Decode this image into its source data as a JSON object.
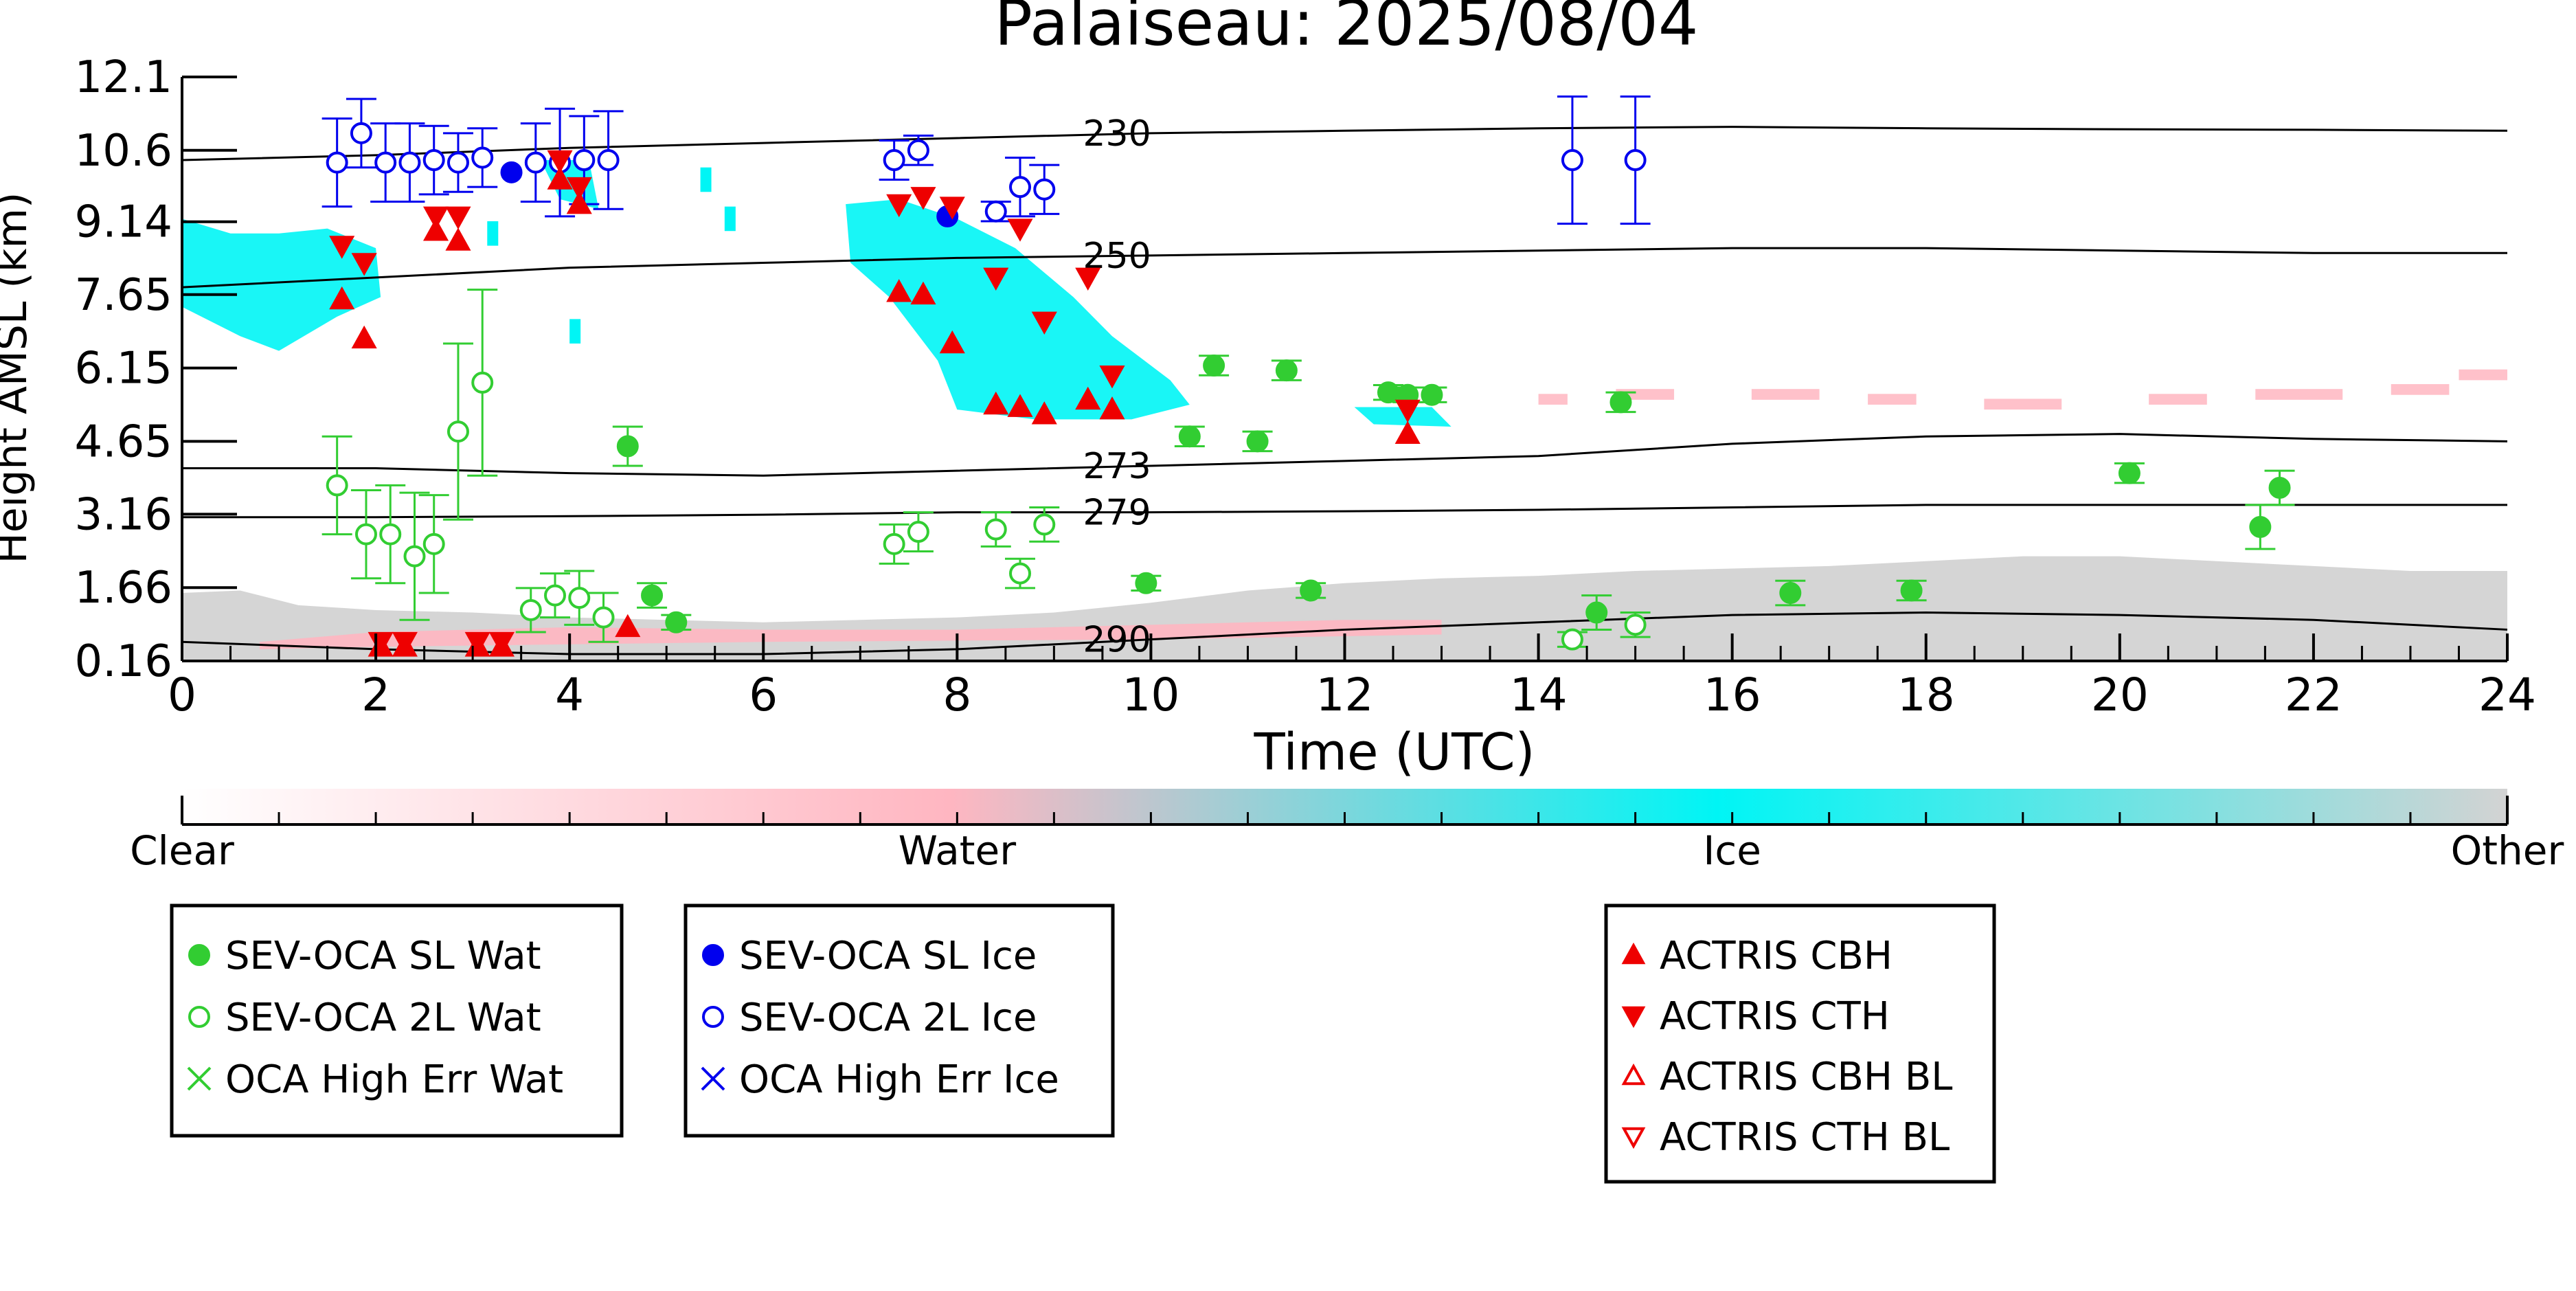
{
  "chart_data": {
    "type": "scatter",
    "title": "Palaiseau: 2025/08/04",
    "xlabel": "Time (UTC)",
    "ylabel": "Height AMSL (km)",
    "xlim": [
      0,
      24
    ],
    "ylim": [
      0.16,
      12.1
    ],
    "x_ticks": [
      0,
      2,
      4,
      6,
      8,
      10,
      12,
      14,
      16,
      18,
      20,
      22,
      24
    ],
    "y_ticks": [
      "0.16",
      "1.66",
      "3.16",
      "4.65",
      "6.15",
      "7.65",
      "9.14",
      "10.6",
      "12.1"
    ],
    "colorbar": {
      "labels": [
        "Clear",
        "Water",
        "Ice",
        "Other"
      ],
      "colors": [
        "#ffffff",
        "#ffb6c1",
        "#00f5f5",
        "#d3d3d3"
      ]
    },
    "contours": [
      {
        "label": "230",
        "x": [
          0,
          2,
          4,
          6,
          8,
          10,
          12,
          14,
          16,
          18,
          20,
          22,
          24
        ],
        "y": [
          10.4,
          10.5,
          10.65,
          10.75,
          10.85,
          10.95,
          11.0,
          11.05,
          11.08,
          11.05,
          11.03,
          11.02,
          11.0
        ]
      },
      {
        "label": "250",
        "x": [
          0,
          2,
          4,
          6,
          8,
          10,
          12,
          14,
          16,
          18,
          20,
          22,
          24
        ],
        "y": [
          7.8,
          8.0,
          8.2,
          8.3,
          8.4,
          8.45,
          8.5,
          8.55,
          8.6,
          8.6,
          8.55,
          8.5,
          8.5
        ]
      },
      {
        "label": "273",
        "x": [
          0,
          2,
          4,
          6,
          8,
          10,
          12,
          14,
          16,
          18,
          20,
          22,
          24
        ],
        "y": [
          4.1,
          4.1,
          4.0,
          3.95,
          4.05,
          4.15,
          4.25,
          4.35,
          4.6,
          4.75,
          4.8,
          4.7,
          4.65
        ]
      },
      {
        "label": "279",
        "x": [
          0,
          2,
          4,
          6,
          8,
          10,
          12,
          14,
          16,
          18,
          20,
          22,
          24
        ],
        "y": [
          3.1,
          3.1,
          3.12,
          3.15,
          3.2,
          3.2,
          3.22,
          3.25,
          3.3,
          3.35,
          3.35,
          3.35,
          3.35
        ]
      },
      {
        "label": "290",
        "x": [
          0,
          2,
          4,
          6,
          8,
          10,
          12,
          14,
          16,
          18,
          20,
          22,
          24
        ],
        "y": [
          0.55,
          0.4,
          0.3,
          0.3,
          0.4,
          0.6,
          0.8,
          0.95,
          1.1,
          1.15,
          1.1,
          1.0,
          0.8
        ]
      }
    ],
    "series": [
      {
        "name": "SEV-OCA SL Wat",
        "color": "#32cd32",
        "marker": "filled-circle",
        "points": [
          {
            "x": 4.6,
            "y": 4.55,
            "err": 0.4
          },
          {
            "x": 4.85,
            "y": 1.5,
            "err": 0.25
          },
          {
            "x": 5.1,
            "y": 0.95,
            "err": 0.15
          },
          {
            "x": 9.95,
            "y": 1.75,
            "err": 0.15
          },
          {
            "x": 10.4,
            "y": 4.75,
            "err": 0.2
          },
          {
            "x": 10.65,
            "y": 6.2,
            "err": 0.2
          },
          {
            "x": 11.1,
            "y": 4.65,
            "err": 0.2
          },
          {
            "x": 11.4,
            "y": 6.1,
            "err": 0.2
          },
          {
            "x": 11.65,
            "y": 1.6,
            "err": 0.15
          },
          {
            "x": 12.45,
            "y": 5.65,
            "err": 0.15
          },
          {
            "x": 12.65,
            "y": 5.6,
            "err": 0.15
          },
          {
            "x": 12.9,
            "y": 5.6,
            "err": 0.15
          },
          {
            "x": 14.6,
            "y": 1.15,
            "err": 0.35
          },
          {
            "x": 14.85,
            "y": 5.45,
            "err": 0.2
          },
          {
            "x": 16.6,
            "y": 1.55,
            "err": 0.25
          },
          {
            "x": 17.85,
            "y": 1.6,
            "err": 0.2
          },
          {
            "x": 20.1,
            "y": 4.0,
            "err": 0.2
          },
          {
            "x": 21.45,
            "y": 2.9,
            "err": 0.45
          },
          {
            "x": 21.65,
            "y": 3.7,
            "err": 0.35
          }
        ]
      },
      {
        "name": "SEV-OCA 2L Wat",
        "color": "#32cd32",
        "marker": "open-circle",
        "points": [
          {
            "x": 1.6,
            "y": 3.75,
            "err": 1.0
          },
          {
            "x": 1.9,
            "y": 2.75,
            "err": 0.9
          },
          {
            "x": 2.15,
            "y": 2.75,
            "err": 1.0
          },
          {
            "x": 2.4,
            "y": 2.3,
            "err": 1.3
          },
          {
            "x": 2.6,
            "y": 2.55,
            "err": 1.0
          },
          {
            "x": 2.85,
            "y": 4.85,
            "err": 1.8
          },
          {
            "x": 3.1,
            "y": 5.85,
            "err": 1.9
          },
          {
            "x": 3.6,
            "y": 1.2,
            "err": 0.45
          },
          {
            "x": 3.85,
            "y": 1.5,
            "err": 0.45
          },
          {
            "x": 4.1,
            "y": 1.45,
            "err": 0.55
          },
          {
            "x": 4.35,
            "y": 1.05,
            "err": 0.5
          },
          {
            "x": 7.35,
            "y": 2.55,
            "err": 0.4
          },
          {
            "x": 7.6,
            "y": 2.8,
            "err": 0.4
          },
          {
            "x": 8.4,
            "y": 2.85,
            "err": 0.35
          },
          {
            "x": 8.65,
            "y": 1.95,
            "err": 0.3
          },
          {
            "x": 8.9,
            "y": 2.95,
            "err": 0.35
          },
          {
            "x": 14.35,
            "y": 0.6,
            "err": 0.15
          },
          {
            "x": 15.0,
            "y": 0.9,
            "err": 0.25
          }
        ]
      },
      {
        "name": "OCA High Err Wat",
        "color": "#32cd32",
        "marker": "x",
        "points": []
      },
      {
        "name": "SEV-OCA SL Ice",
        "color": "#0000ee",
        "marker": "filled-circle",
        "points": [
          {
            "x": 3.4,
            "y": 10.15,
            "err": 0.0
          },
          {
            "x": 7.9,
            "y": 9.25,
            "err": 0.0
          }
        ]
      },
      {
        "name": "SEV-OCA 2L Ice",
        "color": "#0000ee",
        "marker": "open-circle",
        "points": [
          {
            "x": 1.6,
            "y": 10.35,
            "err": 0.9
          },
          {
            "x": 1.85,
            "y": 10.95,
            "err": 0.7
          },
          {
            "x": 2.1,
            "y": 10.35,
            "err": 0.8
          },
          {
            "x": 2.35,
            "y": 10.35,
            "err": 0.8
          },
          {
            "x": 2.6,
            "y": 10.4,
            "err": 0.7
          },
          {
            "x": 2.85,
            "y": 10.35,
            "err": 0.6
          },
          {
            "x": 3.1,
            "y": 10.45,
            "err": 0.6
          },
          {
            "x": 3.65,
            "y": 10.35,
            "err": 0.8
          },
          {
            "x": 3.9,
            "y": 10.35,
            "err": 1.1
          },
          {
            "x": 4.15,
            "y": 10.4,
            "err": 0.9
          },
          {
            "x": 4.4,
            "y": 10.4,
            "err": 1.0
          },
          {
            "x": 7.35,
            "y": 10.4,
            "err": 0.4
          },
          {
            "x": 7.6,
            "y": 10.6,
            "err": 0.3
          },
          {
            "x": 8.4,
            "y": 9.35,
            "err": 0.2
          },
          {
            "x": 8.65,
            "y": 9.85,
            "err": 0.6
          },
          {
            "x": 8.9,
            "y": 9.8,
            "err": 0.5
          },
          {
            "x": 14.35,
            "y": 10.4,
            "err": 1.3
          },
          {
            "x": 15.0,
            "y": 10.4,
            "err": 1.3
          }
        ]
      },
      {
        "name": "OCA High Err Ice",
        "color": "#0000ee",
        "marker": "x",
        "points": []
      },
      {
        "name": "ACTRIS CBH",
        "color": "#ee0000",
        "marker": "filled-triangle-up",
        "points": [
          {
            "x": 1.65,
            "y": 7.55
          },
          {
            "x": 1.88,
            "y": 6.75
          },
          {
            "x": 2.62,
            "y": 8.95
          },
          {
            "x": 2.85,
            "y": 8.75
          },
          {
            "x": 3.9,
            "y": 10.0
          },
          {
            "x": 4.1,
            "y": 9.5
          },
          {
            "x": 4.6,
            "y": 0.85
          },
          {
            "x": 2.05,
            "y": 0.45
          },
          {
            "x": 2.3,
            "y": 0.45
          },
          {
            "x": 3.05,
            "y": 0.45
          },
          {
            "x": 3.3,
            "y": 0.45
          },
          {
            "x": 7.4,
            "y": 7.7
          },
          {
            "x": 7.65,
            "y": 7.65
          },
          {
            "x": 7.95,
            "y": 6.65
          },
          {
            "x": 8.4,
            "y": 5.4
          },
          {
            "x": 8.65,
            "y": 5.35
          },
          {
            "x": 8.9,
            "y": 5.2
          },
          {
            "x": 9.35,
            "y": 5.5
          },
          {
            "x": 9.6,
            "y": 5.3
          },
          {
            "x": 12.65,
            "y": 4.8
          }
        ]
      },
      {
        "name": "ACTRIS CTH",
        "color": "#ee0000",
        "marker": "filled-triangle-down",
        "points": [
          {
            "x": 1.65,
            "y": 8.65
          },
          {
            "x": 1.88,
            "y": 8.3
          },
          {
            "x": 2.62,
            "y": 9.25
          },
          {
            "x": 2.85,
            "y": 9.25
          },
          {
            "x": 3.9,
            "y": 10.4
          },
          {
            "x": 4.1,
            "y": 9.85
          },
          {
            "x": 2.05,
            "y": 0.55
          },
          {
            "x": 2.3,
            "y": 0.55
          },
          {
            "x": 3.05,
            "y": 0.55
          },
          {
            "x": 3.3,
            "y": 0.55
          },
          {
            "x": 7.4,
            "y": 9.5
          },
          {
            "x": 7.65,
            "y": 9.65
          },
          {
            "x": 7.95,
            "y": 9.45
          },
          {
            "x": 8.4,
            "y": 8.0
          },
          {
            "x": 8.65,
            "y": 9.0
          },
          {
            "x": 8.9,
            "y": 7.1
          },
          {
            "x": 9.35,
            "y": 8.0
          },
          {
            "x": 9.6,
            "y": 6.0
          },
          {
            "x": 12.65,
            "y": 5.3
          }
        ]
      },
      {
        "name": "ACTRIS CBH BL",
        "color": "#ee0000",
        "marker": "open-triangle-up",
        "points": []
      },
      {
        "name": "ACTRIS CTH BL",
        "color": "#ee0000",
        "marker": "open-triangle-down",
        "points": []
      }
    ],
    "legend_groups": [
      [
        "SEV-OCA SL Wat",
        "SEV-OCA 2L Wat",
        "OCA High Err Wat"
      ],
      [
        "SEV-OCA SL Ice",
        "SEV-OCA 2L Ice",
        "OCA High Err Ice"
      ],
      [
        "ACTRIS CBH",
        "ACTRIS CTH",
        "ACTRIS CBH BL",
        "ACTRIS CTH BL"
      ]
    ]
  }
}
